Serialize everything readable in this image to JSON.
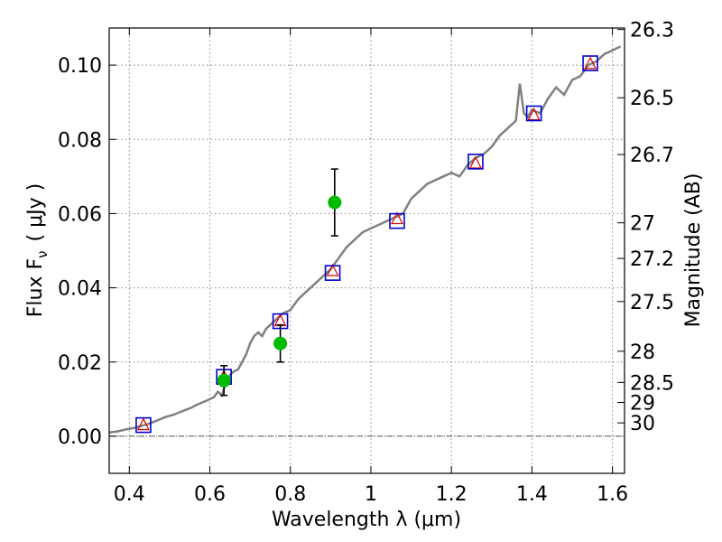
{
  "chart_data": {
    "type": "scatter",
    "xlabel": "Wavelength  λ (μm)",
    "ylabel": "Flux  F",
    "ylabel_sub": "ν",
    "ylabel_unit": "( μJy )",
    "y2label": "Magnitude (AB)",
    "xlim": [
      0.35,
      1.63
    ],
    "ylim": [
      -0.01,
      0.11
    ],
    "grid": true,
    "x_ticks": [
      0.4,
      0.6,
      0.8,
      1.0,
      1.2,
      1.4,
      1.6
    ],
    "x_tick_labels": [
      "0.4",
      "0.6",
      "0.8",
      "1",
      "1.2",
      "1.4",
      "1.6"
    ],
    "y_ticks": [
      0.0,
      0.02,
      0.04,
      0.06,
      0.08,
      0.1
    ],
    "y_tick_labels": [
      "0.00",
      "0.02",
      "0.04",
      "0.06",
      "0.08",
      "0.10"
    ],
    "y2_tick_labels": [
      "26.3",
      "26.5",
      "26.7",
      "27",
      "27.2",
      "27.5",
      "28",
      "28.5",
      "29",
      "30"
    ],
    "y2_tick_flux": [
      0.1096,
      0.0912,
      0.0759,
      0.0575,
      0.0479,
      0.0363,
      0.0229,
      0.0145,
      0.0091,
      0.0036
    ],
    "zero_line": 0.0,
    "colors": {
      "spectrum": "#808080",
      "observed": "#00bb00",
      "model_square": "#0000cc",
      "model_triangle": "#dd0000",
      "errorbar": "#000000",
      "grid": "#888888"
    },
    "series": [
      {
        "marker": "line",
        "x": [
          0.35,
          0.37,
          0.39,
          0.41,
          0.43,
          0.45,
          0.47,
          0.49,
          0.51,
          0.53,
          0.55,
          0.57,
          0.59,
          0.61,
          0.62,
          0.63,
          0.64,
          0.65,
          0.66,
          0.67,
          0.68,
          0.69,
          0.7,
          0.71,
          0.72,
          0.73,
          0.74,
          0.75,
          0.76,
          0.77,
          0.78,
          0.8,
          0.82,
          0.84,
          0.86,
          0.88,
          0.9,
          0.92,
          0.94,
          0.96,
          0.98,
          1.0,
          1.02,
          1.04,
          1.06,
          1.08,
          1.1,
          1.12,
          1.14,
          1.16,
          1.18,
          1.2,
          1.22,
          1.24,
          1.26,
          1.28,
          1.3,
          1.32,
          1.34,
          1.36,
          1.37,
          1.38,
          1.39,
          1.4,
          1.42,
          1.44,
          1.46,
          1.48,
          1.5,
          1.52,
          1.54,
          1.56,
          1.58,
          1.6,
          1.62
        ],
        "y": [
          0.001,
          0.0013,
          0.0018,
          0.0022,
          0.0028,
          0.0034,
          0.0043,
          0.0052,
          0.0058,
          0.0067,
          0.0075,
          0.0086,
          0.0095,
          0.0105,
          0.012,
          0.011,
          0.0145,
          0.0165,
          0.0175,
          0.018,
          0.02,
          0.022,
          0.025,
          0.027,
          0.028,
          0.027,
          0.029,
          0.03,
          0.031,
          0.032,
          0.033,
          0.034,
          0.037,
          0.039,
          0.041,
          0.043,
          0.045,
          0.048,
          0.051,
          0.053,
          0.055,
          0.056,
          0.057,
          0.058,
          0.059,
          0.06,
          0.064,
          0.066,
          0.068,
          0.069,
          0.07,
          0.071,
          0.07,
          0.073,
          0.075,
          0.076,
          0.078,
          0.081,
          0.083,
          0.085,
          0.095,
          0.087,
          0.086,
          0.088,
          0.087,
          0.091,
          0.094,
          0.092,
          0.096,
          0.097,
          0.1,
          0.101,
          0.103,
          0.104,
          0.105
        ]
      },
      {
        "marker": "square",
        "x": [
          0.435,
          0.635,
          0.775,
          0.905,
          1.065,
          1.26,
          1.405,
          1.545
        ],
        "y": [
          0.003,
          0.016,
          0.031,
          0.044,
          0.058,
          0.074,
          0.087,
          0.1005
        ]
      },
      {
        "marker": "triangle",
        "x": [
          0.435,
          0.635,
          0.775,
          0.905,
          1.065,
          1.26,
          1.405,
          1.545
        ],
        "y": [
          0.003,
          0.016,
          0.031,
          0.0445,
          0.0585,
          0.0735,
          0.0865,
          0.1003
        ]
      },
      {
        "marker": "circle",
        "x": [
          0.635,
          0.775,
          0.91
        ],
        "y": [
          0.015,
          0.025,
          0.063
        ],
        "yerr": [
          0.004,
          0.005,
          0.009
        ]
      }
    ]
  }
}
